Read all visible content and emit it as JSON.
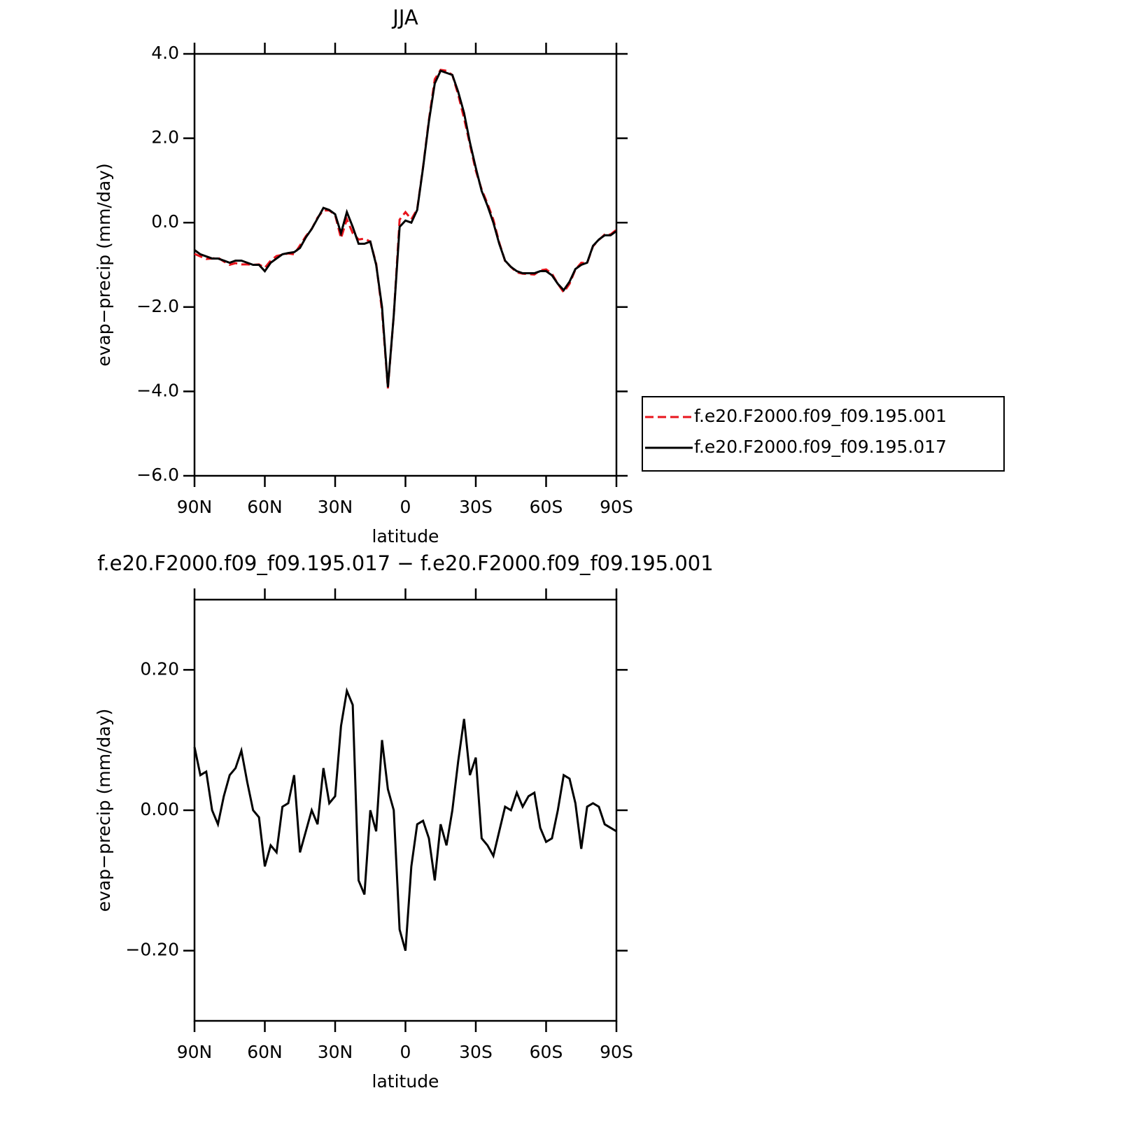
{
  "chart_data": [
    {
      "type": "line",
      "title": "JJA",
      "x_label": "latitude",
      "y_label": "evap−precip (mm/day)",
      "xlim": [
        90,
        -90
      ],
      "ylim": [
        -6,
        4
      ],
      "xticks": [
        {
          "value": 90,
          "label": "90N"
        },
        {
          "value": 60,
          "label": "60N"
        },
        {
          "value": 30,
          "label": "30N"
        },
        0,
        {
          "value": -30,
          "label": "30S"
        },
        {
          "value": -60,
          "label": "60S"
        },
        {
          "value": -90,
          "label": "90S"
        }
      ],
      "yticks": [
        {
          "value": -6,
          "label": "−6.0"
        },
        {
          "value": -4,
          "label": "−4.0"
        },
        {
          "value": -2,
          "label": "−2.0"
        },
        {
          "value": 0,
          "label": "0.0"
        },
        {
          "value": 2,
          "label": "2.0"
        },
        {
          "value": 4,
          "label": "4.0"
        }
      ],
      "legend": "right",
      "x": [
        90,
        87.5,
        85,
        82.5,
        80,
        77.5,
        75,
        72.5,
        70,
        67.5,
        65,
        62.5,
        60,
        57.5,
        55,
        52.5,
        50,
        47.5,
        45,
        42.5,
        40,
        37.5,
        35,
        32.5,
        30,
        27.5,
        25,
        22.5,
        20,
        17.5,
        15,
        12.5,
        10,
        7.5,
        5,
        2.5,
        0,
        -2.5,
        -5,
        -7.5,
        -10,
        -12.5,
        -15,
        -17.5,
        -20,
        -22.5,
        -25,
        -27.5,
        -30,
        -32.5,
        -35,
        -37.5,
        -40,
        -42.5,
        -45,
        -47.5,
        -50,
        -52.5,
        -55,
        -57.5,
        -60,
        -62.5,
        -65,
        -67.5,
        -70,
        -72.5,
        -75,
        -77.5,
        -80,
        -82.5,
        -85,
        -87.5,
        -90
      ],
      "series": [
        {
          "name": "f.e20.F2000.f09_f09.195.001",
          "color": "#e8141c",
          "line_style": "dashed",
          "values": [
            -0.74,
            -0.8,
            -0.86,
            -0.85,
            -0.83,
            -0.92,
            -1.0,
            -0.96,
            -0.99,
            -0.99,
            -1.0,
            -0.99,
            -1.07,
            -0.9,
            -0.79,
            -0.76,
            -0.73,
            -0.75,
            -0.54,
            -0.32,
            -0.15,
            0.12,
            0.29,
            0.29,
            0.18,
            -0.37,
            0.08,
            -0.25,
            -0.4,
            -0.38,
            -0.45,
            -0.97,
            -2.1,
            -3.93,
            -2.2,
            0.07,
            0.25,
            0.08,
            0.32,
            1.32,
            2.44,
            3.4,
            3.62,
            3.6,
            3.5,
            3.03,
            2.47,
            1.85,
            1.23,
            0.79,
            0.45,
            0.07,
            -0.47,
            -0.91,
            -1.05,
            -1.18,
            -1.21,
            -1.22,
            -1.23,
            -1.13,
            -1.11,
            -1.21,
            -1.45,
            -1.65,
            -1.45,
            -1.11,
            -0.95,
            -0.96,
            -0.56,
            -0.41,
            -0.28,
            -0.28,
            -0.17
          ]
        },
        {
          "name": "f.e20.F2000.f09_f09.195.017",
          "color": "#000000",
          "line_style": "solid",
          "values": [
            -0.65,
            -0.75,
            -0.8,
            -0.85,
            -0.85,
            -0.9,
            -0.95,
            -0.9,
            -0.9,
            -0.95,
            -1.0,
            -1.0,
            -1.15,
            -0.95,
            -0.85,
            -0.75,
            -0.72,
            -0.7,
            -0.6,
            -0.35,
            -0.15,
            0.1,
            0.35,
            0.3,
            0.2,
            -0.25,
            0.25,
            -0.1,
            -0.5,
            -0.5,
            -0.45,
            -1.0,
            -2.0,
            -3.9,
            -2.2,
            -0.1,
            0.05,
            0.0,
            0.3,
            1.3,
            2.4,
            3.3,
            3.6,
            3.55,
            3.5,
            3.1,
            2.6,
            1.9,
            1.3,
            0.75,
            0.4,
            0.0,
            -0.5,
            -0.9,
            -1.05,
            -1.15,
            -1.2,
            -1.2,
            -1.2,
            -1.15,
            -1.15,
            -1.25,
            -1.45,
            -1.6,
            -1.4,
            -1.1,
            -1.0,
            -0.95,
            -0.55,
            -0.4,
            -0.3,
            -0.3,
            -0.2
          ]
        }
      ]
    },
    {
      "type": "line",
      "title": "f.e20.F2000.f09_f09.195.017 − f.e20.F2000.f09_f09.195.001",
      "x_label": "latitude",
      "y_label": "evap−precip (mm/day)",
      "xlim": [
        90,
        -90
      ],
      "ylim": [
        -0.3,
        0.3
      ],
      "xticks": [
        {
          "value": 90,
          "label": "90N"
        },
        {
          "value": 60,
          "label": "60N"
        },
        {
          "value": 30,
          "label": "30N"
        },
        0,
        {
          "value": -30,
          "label": "30S"
        },
        {
          "value": -60,
          "label": "60S"
        },
        {
          "value": -90,
          "label": "90S"
        }
      ],
      "yticks": [
        {
          "value": -0.2,
          "label": "−0.20"
        },
        {
          "value": 0,
          "label": "0.00"
        },
        {
          "value": 0.2,
          "label": "0.20"
        }
      ],
      "color": "#000000",
      "x": [
        90,
        87.5,
        85,
        82.5,
        80,
        77.5,
        75,
        72.5,
        70,
        67.5,
        65,
        62.5,
        60,
        57.5,
        55,
        52.5,
        50,
        47.5,
        45,
        42.5,
        40,
        37.5,
        35,
        32.5,
        30,
        27.5,
        25,
        22.5,
        20,
        17.5,
        15,
        12.5,
        10,
        7.5,
        5,
        2.5,
        0,
        -2.5,
        -5,
        -7.5,
        -10,
        -12.5,
        -15,
        -17.5,
        -20,
        -22.5,
        -25,
        -27.5,
        -30,
        -32.5,
        -35,
        -37.5,
        -40,
        -42.5,
        -45,
        -47.5,
        -50,
        -52.5,
        -55,
        -57.5,
        -60,
        -62.5,
        -65,
        -67.5,
        -70,
        -72.5,
        -75,
        -77.5,
        -80,
        -82.5,
        -85,
        -87.5,
        -90
      ],
      "values": [
        0.09,
        0.05,
        0.055,
        0.0,
        -0.02,
        0.02,
        0.05,
        0.06,
        0.085,
        0.04,
        0.0,
        -0.01,
        -0.08,
        -0.05,
        -0.06,
        0.005,
        0.01,
        0.05,
        -0.06,
        -0.03,
        0.0,
        -0.02,
        0.06,
        0.01,
        0.02,
        0.12,
        0.17,
        0.15,
        -0.1,
        -0.12,
        0.0,
        -0.03,
        0.1,
        0.03,
        0.0,
        -0.17,
        -0.2,
        -0.08,
        -0.02,
        -0.015,
        -0.04,
        -0.1,
        -0.02,
        -0.05,
        0.0,
        0.07,
        0.13,
        0.05,
        0.075,
        -0.04,
        -0.05,
        -0.065,
        -0.03,
        0.005,
        0.0,
        0.025,
        0.005,
        0.02,
        0.025,
        -0.025,
        -0.045,
        -0.04,
        0.0,
        0.05,
        0.045,
        0.01,
        -0.055,
        0.005,
        0.01,
        0.005,
        -0.02,
        -0.025,
        -0.03
      ]
    }
  ]
}
